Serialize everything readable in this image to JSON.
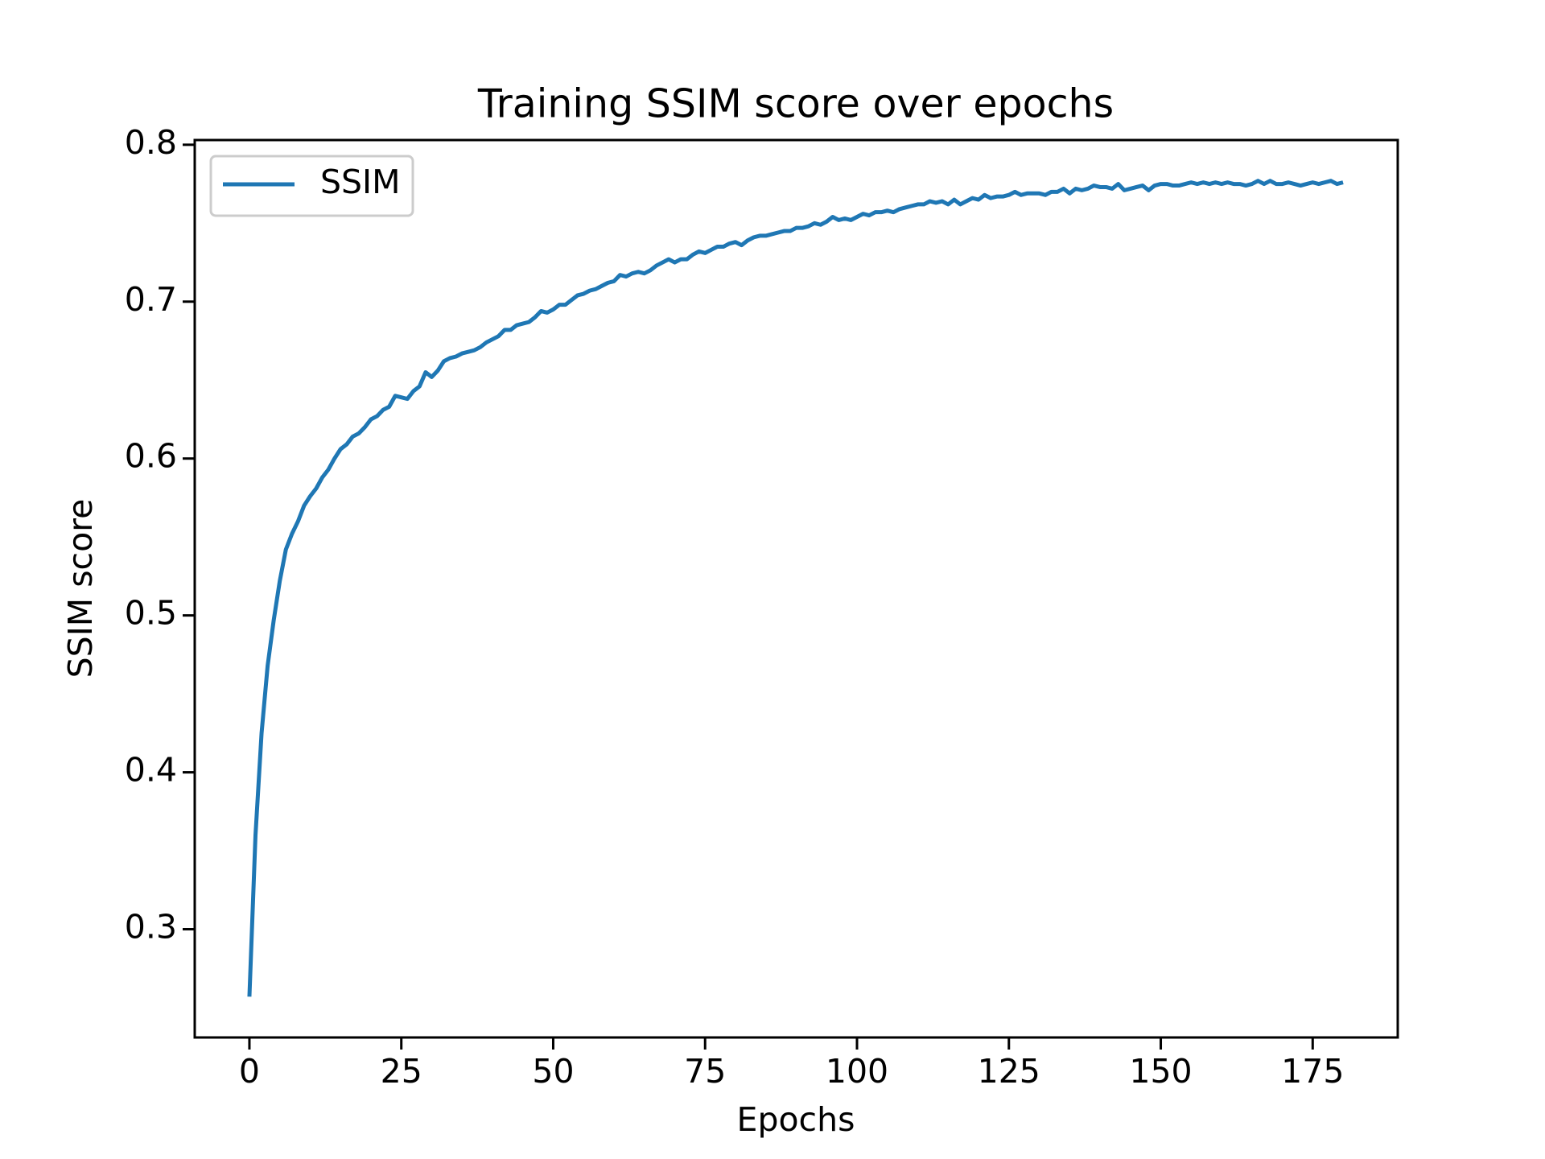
{
  "chart_data": {
    "type": "line",
    "title": "Training SSIM score over epochs",
    "x_label": "Epochs",
    "y_label": "SSIM score",
    "x": [
      0,
      1,
      2,
      3,
      4,
      5,
      6,
      7,
      8,
      9,
      10,
      11,
      12,
      13,
      14,
      15,
      16,
      17,
      18,
      19,
      20,
      21,
      22,
      23,
      24,
      25,
      26,
      27,
      28,
      29,
      30,
      31,
      32,
      33,
      34,
      35,
      36,
      37,
      38,
      39,
      40,
      41,
      42,
      43,
      44,
      45,
      46,
      47,
      48,
      49,
      50,
      51,
      52,
      53,
      54,
      55,
      56,
      57,
      58,
      59,
      60,
      61,
      62,
      63,
      64,
      65,
      66,
      67,
      68,
      69,
      70,
      71,
      72,
      73,
      74,
      75,
      76,
      77,
      78,
      79,
      80,
      81,
      82,
      83,
      84,
      85,
      86,
      87,
      88,
      89,
      90,
      91,
      92,
      93,
      94,
      95,
      96,
      97,
      98,
      99,
      100,
      101,
      102,
      103,
      104,
      105,
      106,
      107,
      108,
      109,
      110,
      111,
      112,
      113,
      114,
      115,
      116,
      117,
      118,
      119,
      120,
      121,
      122,
      123,
      124,
      125,
      126,
      127,
      128,
      129,
      130,
      131,
      132,
      133,
      134,
      135,
      136,
      137,
      138,
      139,
      140,
      141,
      142,
      143,
      144,
      145,
      146,
      147,
      148,
      149,
      150,
      151,
      152,
      153,
      154,
      155,
      156,
      157,
      158,
      159,
      160,
      161,
      162,
      163,
      164,
      165,
      166,
      167,
      168,
      169,
      170,
      171,
      172,
      173,
      174,
      175,
      176,
      177,
      178,
      179,
      180
    ],
    "series": [
      {
        "name": "SSIM",
        "color": "#1f77b4",
        "values": [
          0.257,
          0.36,
          0.425,
          0.468,
          0.497,
          0.522,
          0.542,
          0.552,
          0.56,
          0.57,
          0.576,
          0.581,
          0.588,
          0.593,
          0.6,
          0.606,
          0.609,
          0.614,
          0.616,
          0.62,
          0.625,
          0.627,
          0.631,
          0.633,
          0.64,
          0.639,
          0.638,
          0.643,
          0.646,
          0.655,
          0.652,
          0.656,
          0.662,
          0.664,
          0.665,
          0.667,
          0.668,
          0.669,
          0.671,
          0.674,
          0.676,
          0.678,
          0.682,
          0.682,
          0.685,
          0.686,
          0.687,
          0.69,
          0.694,
          0.693,
          0.695,
          0.698,
          0.698,
          0.701,
          0.704,
          0.705,
          0.707,
          0.708,
          0.71,
          0.712,
          0.713,
          0.717,
          0.716,
          0.718,
          0.719,
          0.718,
          0.72,
          0.723,
          0.725,
          0.727,
          0.725,
          0.727,
          0.727,
          0.73,
          0.732,
          0.731,
          0.733,
          0.735,
          0.735,
          0.737,
          0.738,
          0.736,
          0.739,
          0.741,
          0.742,
          0.742,
          0.743,
          0.744,
          0.745,
          0.745,
          0.747,
          0.747,
          0.748,
          0.75,
          0.749,
          0.751,
          0.754,
          0.752,
          0.753,
          0.752,
          0.754,
          0.756,
          0.755,
          0.757,
          0.757,
          0.758,
          0.757,
          0.759,
          0.76,
          0.761,
          0.762,
          0.762,
          0.764,
          0.763,
          0.764,
          0.762,
          0.765,
          0.762,
          0.764,
          0.766,
          0.765,
          0.768,
          0.766,
          0.767,
          0.767,
          0.768,
          0.77,
          0.768,
          0.769,
          0.769,
          0.769,
          0.768,
          0.77,
          0.77,
          0.772,
          0.769,
          0.772,
          0.771,
          0.772,
          0.774,
          0.773,
          0.773,
          0.772,
          0.775,
          0.771,
          0.772,
          0.773,
          0.774,
          0.771,
          0.774,
          0.775,
          0.775,
          0.774,
          0.774,
          0.775,
          0.776,
          0.775,
          0.776,
          0.775,
          0.776,
          0.775,
          0.776,
          0.775,
          0.775,
          0.774,
          0.775,
          0.777,
          0.775,
          0.777,
          0.775,
          0.775,
          0.776,
          0.775,
          0.774,
          0.775,
          0.776,
          0.775,
          0.776,
          0.777,
          0.775,
          0.776
        ]
      }
    ],
    "xlim": [
      -9,
      189
    ],
    "xticks": [
      0,
      25,
      50,
      75,
      100,
      125,
      150,
      175
    ],
    "ylim": [
      0.231,
      0.803
    ],
    "yticks": [
      0.3,
      0.4,
      0.5,
      0.6,
      0.7,
      0.8
    ],
    "grid": false,
    "legend": "upper left"
  }
}
